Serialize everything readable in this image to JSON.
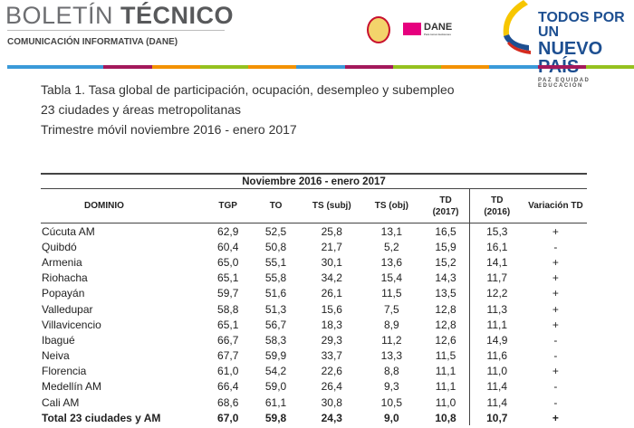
{
  "header": {
    "title_light": "BOLETÍN",
    "title_bold": "TÉCNICO",
    "subtitle": "COMUNICACIÓN INFORMATIVA (DANE)",
    "dane_logo": "DANE",
    "dane_tagline": "Para tomar decisiones",
    "gov_logo": {
      "line1": "TODOS POR UN",
      "line2": "NUEVO PAÍS",
      "line3": "PAZ  EQUIDAD  EDUCACIÓN"
    },
    "stripe_colors": [
      "#3a9ad9",
      "#3a9ad9",
      "#a3195b",
      "#f39200",
      "#95c11f",
      "#f39200",
      "#3a9ad9",
      "#a3195b",
      "#95c11f",
      "#f39200",
      "#3a9ad9",
      "#a3195b",
      "#95c11f"
    ]
  },
  "caption": [
    "Tabla 1. Tasa global de participación, ocupación, desempleo y subempleo",
    "23 ciudades y áreas metropolitanas",
    "Trimestre móvil noviembre 2016 - enero 2017"
  ],
  "table": {
    "period": "Noviembre 2016 - enero 2017",
    "columns": [
      "DOMINIO",
      "TGP",
      "TO",
      "TS (subj)",
      "TS (obj)",
      "TD (2017)",
      "TD (2016)",
      "Variación TD"
    ],
    "rows": [
      [
        "Cúcuta AM",
        "62,9",
        "52,5",
        "25,8",
        "13,1",
        "16,5",
        "15,3",
        "+"
      ],
      [
        "Quibdó",
        "60,4",
        "50,8",
        "21,7",
        "5,2",
        "15,9",
        "16,1",
        "-"
      ],
      [
        "Armenia",
        "65,0",
        "55,1",
        "30,1",
        "13,6",
        "15,2",
        "14,1",
        "+"
      ],
      [
        "Riohacha",
        "65,1",
        "55,8",
        "34,2",
        "15,4",
        "14,3",
        "11,7",
        "+"
      ],
      [
        "Popayán",
        "59,7",
        "51,6",
        "26,1",
        "11,5",
        "13,5",
        "12,2",
        "+"
      ],
      [
        "Valledupar",
        "58,8",
        "51,3",
        "15,6",
        "7,5",
        "12,8",
        "11,3",
        "+"
      ],
      [
        "Villavicencio",
        "65,1",
        "56,7",
        "18,3",
        "8,9",
        "12,8",
        "11,1",
        "+"
      ],
      [
        "Ibagué",
        "66,7",
        "58,3",
        "29,3",
        "11,2",
        "12,6",
        "14,9",
        "-"
      ],
      [
        "Neiva",
        "67,7",
        "59,9",
        "33,7",
        "13,3",
        "11,5",
        "11,6",
        "-"
      ],
      [
        "Florencia",
        "61,0",
        "54,2",
        "22,6",
        "8,8",
        "11,1",
        "11,0",
        "+"
      ],
      [
        "Medellín AM",
        "66,4",
        "59,0",
        "26,4",
        "9,3",
        "11,1",
        "11,4",
        "-"
      ],
      [
        "Cali AM",
        "68,6",
        "61,1",
        "30,8",
        "10,5",
        "11,0",
        "11,4",
        "-"
      ],
      [
        "Total 23 ciudades y AM",
        "67,0",
        "59,8",
        "24,3",
        "9,0",
        "10,8",
        "10,7",
        "+"
      ]
    ]
  }
}
